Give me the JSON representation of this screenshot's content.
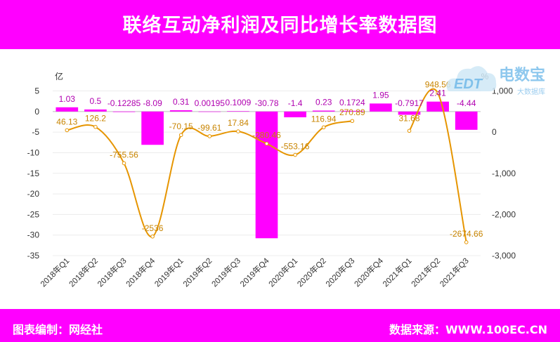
{
  "header": {
    "title": "联络互动净利润及同比增长率数据图"
  },
  "footer": {
    "left": "图表编制：网经社",
    "right": "数据来源：WWW.100EC.CN"
  },
  "logo": {
    "name": "电数宝",
    "sub": "大数据库",
    "mark": "EDT"
  },
  "colors": {
    "bar": "#ff00ff",
    "line": "#e69500",
    "band": "#ff00ff"
  },
  "chart_data": {
    "type": "bar",
    "categories": [
      "2018年Q1",
      "2018年Q2",
      "2018年Q3",
      "2018年Q4",
      "2019年Q1",
      "2019年Q2",
      "2019年Q3",
      "2019年Q4",
      "2020年Q1",
      "2020年Q2",
      "2020年Q3",
      "2020年Q4",
      "2021年Q1",
      "2021年Q2",
      "2021年Q3"
    ],
    "y_left": {
      "unit": "亿",
      "lim": [
        -35,
        5
      ],
      "ticks": [
        5,
        0,
        -5,
        -10,
        -15,
        -20,
        -25,
        -30,
        -35
      ]
    },
    "y_right": {
      "unit": "%",
      "lim": [
        -3000,
        1000
      ],
      "ticks": [
        "1,000",
        "0",
        "-1,000",
        "-2,000",
        "-3,000"
      ],
      "tick_values": [
        1000,
        0,
        -1000,
        -2000,
        -3000
      ]
    },
    "series": [
      {
        "type": "bar",
        "values": [
          1.03,
          0.5,
          -0.12285,
          -8.09,
          0.31,
          0.00195,
          0.1009,
          -30.78,
          -1.4,
          0.23,
          0.1724,
          1.95,
          -0.7917,
          2.41,
          -4.44
        ],
        "labels": [
          "1.03",
          "0.5",
          "-0.12285",
          "-8.09",
          "0.31",
          "0.00195",
          "0.1009",
          "-30.78",
          "-1.4",
          "0.23",
          "0.1724",
          "1.95",
          "-0.7917",
          "2.41",
          "-4.44"
        ]
      },
      {
        "type": "line",
        "values": [
          46.13,
          126.2,
          -755.56,
          -2536,
          -70.15,
          -99.61,
          17.84,
          -280.46,
          -553.16,
          116.94,
          270.89,
          null,
          31.68,
          948.56,
          -2674.66
        ],
        "labels": [
          "46.13",
          "126.2",
          "-755.56",
          "-2536",
          "-70.15",
          "-99.61",
          "17.84",
          "-280.46",
          "-553.16",
          "116.94",
          "270.89",
          "",
          "31.68",
          "948.56",
          "-2674.66"
        ]
      }
    ]
  }
}
